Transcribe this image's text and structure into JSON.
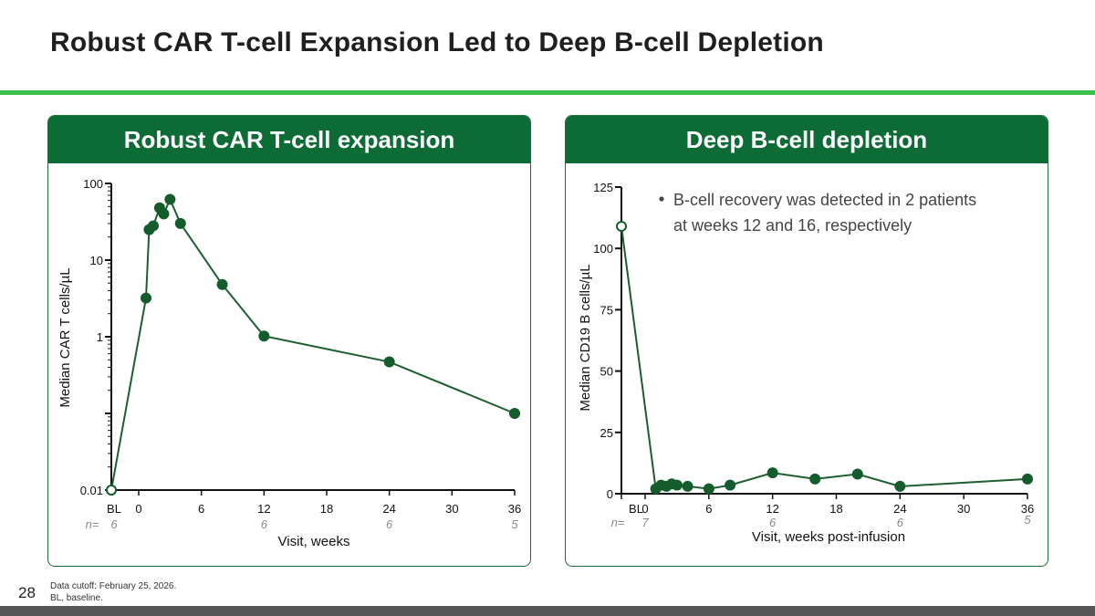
{
  "slide": {
    "title": "Robust CAR T-cell Expansion Led to Deep B-cell Depletion",
    "page_number": "28",
    "footnotes": [
      "Data cutoff: February 25, 2026.",
      "BL, baseline."
    ]
  },
  "colors": {
    "brand_green": "#0d6b35",
    "accent_green": "#3cc04a",
    "line": "#1d5e30",
    "marker": "#145c2c",
    "n_text": "#888888"
  },
  "chart_data": [
    {
      "type": "line",
      "panel_title": "Robust CAR T-cell expansion",
      "xlabel": "Visit, weeks",
      "ylabel": "Median CAR T cells/µL",
      "yscale": "log",
      "ylim": [
        0.01,
        100
      ],
      "yticks": [
        0.01,
        0.1,
        1,
        10,
        100
      ],
      "ytick_labels": [
        "0.01",
        "",
        "1",
        "10",
        "100"
      ],
      "xlim": [
        -2,
        36
      ],
      "xticks": [
        "BL",
        0,
        6,
        12,
        18,
        24,
        30,
        36
      ],
      "n_label": "n=",
      "n_values": [
        {
          "x": -2,
          "label": "6"
        },
        {
          "x": 12,
          "label": "6"
        },
        {
          "x": 24,
          "label": "6"
        },
        {
          "x": 36,
          "label": "5"
        }
      ],
      "baseline": {
        "x": -2,
        "y": 0.01
      },
      "points": [
        {
          "x": -2,
          "y": 0.01
        },
        {
          "x": 0.7,
          "y": 3.2
        },
        {
          "x": 1.0,
          "y": 25
        },
        {
          "x": 1.4,
          "y": 28
        },
        {
          "x": 2.0,
          "y": 48
        },
        {
          "x": 2.4,
          "y": 40
        },
        {
          "x": 3.0,
          "y": 62
        },
        {
          "x": 4.0,
          "y": 30
        },
        {
          "x": 8.0,
          "y": 4.8
        },
        {
          "x": 12.0,
          "y": 1.02
        },
        {
          "x": 24.0,
          "y": 0.47
        },
        {
          "x": 36.0,
          "y": 0.1
        }
      ]
    },
    {
      "type": "line",
      "panel_title": "Deep B-cell depletion",
      "xlabel": "Visit, weeks post-infusion",
      "ylabel": "Median CD19 B cells/µL",
      "yscale": "linear",
      "ylim": [
        0,
        125
      ],
      "yticks": [
        0,
        25,
        50,
        75,
        100,
        125
      ],
      "ytick_labels": [
        "0",
        "25",
        "50",
        "75",
        "100",
        "125"
      ],
      "xlim": [
        -2,
        36
      ],
      "xticks": [
        "BL",
        0,
        6,
        12,
        18,
        24,
        30,
        36
      ],
      "n_label": "n=",
      "n_values": [
        {
          "x": 0,
          "label": "7"
        },
        {
          "x": 12,
          "label": "6"
        },
        {
          "x": 24,
          "label": "6"
        },
        {
          "x": 36,
          "label": "5"
        }
      ],
      "baseline": {
        "x": -2,
        "y": 109
      },
      "annotation": "B-cell recovery was detected in 2 patients at weeks 12 and 16, respectively",
      "annotation_lines": [
        "B-cell recovery was detected in 2 patients",
        "at weeks 12 and 16, respectively"
      ],
      "points": [
        {
          "x": -2,
          "y": 109
        },
        {
          "x": 1.0,
          "y": 2
        },
        {
          "x": 1.5,
          "y": 3.5
        },
        {
          "x": 2.0,
          "y": 3
        },
        {
          "x": 2.5,
          "y": 4
        },
        {
          "x": 3.0,
          "y": 3.5
        },
        {
          "x": 4.0,
          "y": 3
        },
        {
          "x": 6.0,
          "y": 2
        },
        {
          "x": 8.0,
          "y": 3.5
        },
        {
          "x": 12.0,
          "y": 8.5
        },
        {
          "x": 16.0,
          "y": 6
        },
        {
          "x": 20.0,
          "y": 8
        },
        {
          "x": 24.0,
          "y": 3
        },
        {
          "x": 36.0,
          "y": 6
        }
      ]
    }
  ]
}
